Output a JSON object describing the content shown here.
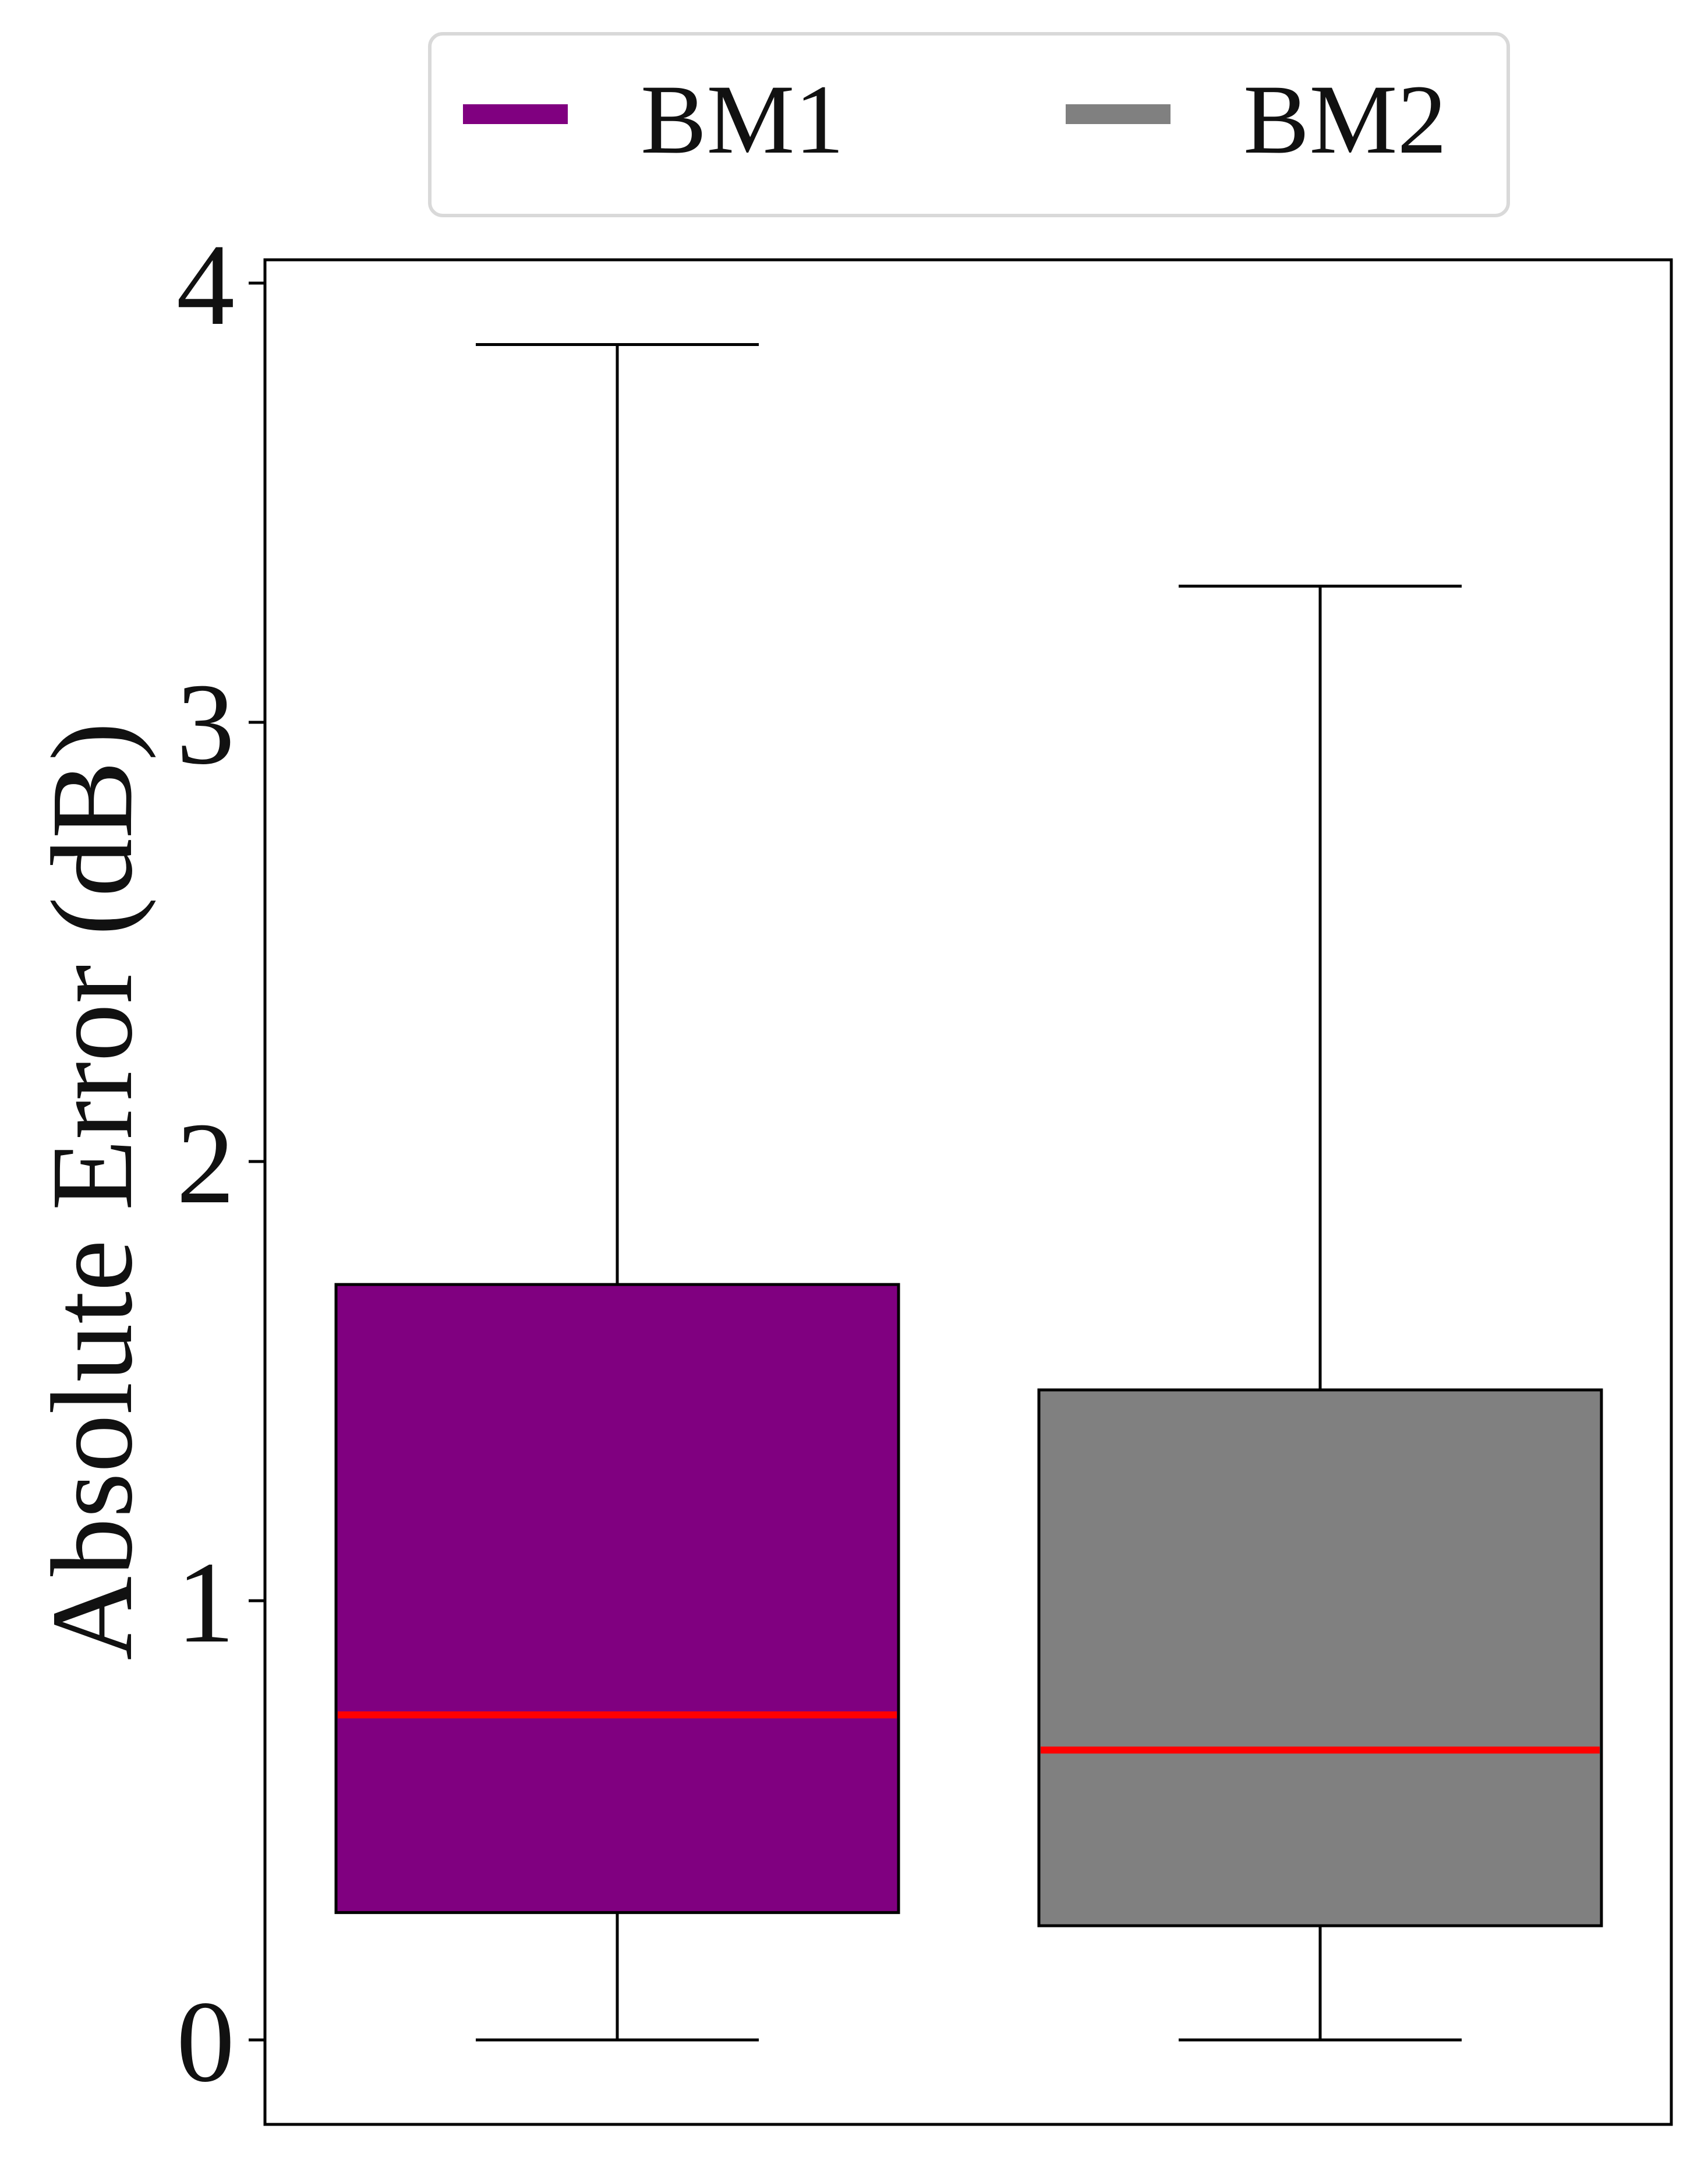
{
  "chart_data": {
    "type": "box",
    "title": "",
    "xlabel": "",
    "ylabel": "Absolute Error (dB)",
    "ylim": [
      -0.2,
      4.05
    ],
    "yticks": [
      0,
      1,
      2,
      3,
      4
    ],
    "grid": false,
    "legend_position": "top-center",
    "series": [
      {
        "name": "BM1",
        "color": "#800080",
        "median_color": "#ff0000",
        "whisker_low": 0.0,
        "q1": 0.29,
        "median": 0.74,
        "q3": 1.72,
        "whisker_high": 3.86
      },
      {
        "name": "BM2",
        "color": "#808080",
        "median_color": "#ff0000",
        "whisker_low": 0.0,
        "q1": 0.26,
        "median": 0.66,
        "q3": 1.48,
        "whisker_high": 3.31
      }
    ]
  }
}
